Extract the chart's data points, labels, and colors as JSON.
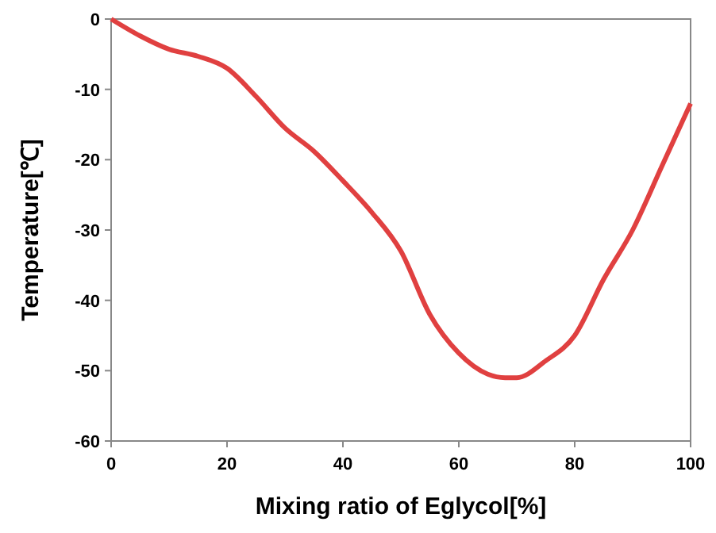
{
  "chart_data": {
    "type": "line",
    "xlabel": "Mixing ratio of Eglycol[%]",
    "ylabel": "Temperature[℃]",
    "xlim": [
      0,
      100
    ],
    "xticks": [
      0,
      20,
      40,
      60,
      80,
      100
    ],
    "ylim": [
      -60,
      0
    ],
    "yticks": [
      -60,
      -50,
      -40,
      -30,
      -20,
      -10,
      0
    ],
    "grid": false,
    "marker": "none",
    "line_style": "solid",
    "series": [
      {
        "color": "#e04040",
        "x": [
          0,
          5,
          10,
          15,
          20,
          25,
          30,
          35,
          40,
          45,
          50,
          55,
          60,
          65,
          68,
          70,
          75,
          80,
          85,
          90,
          95,
          100
        ],
        "values": [
          0,
          -2.4,
          -4.3,
          -5.3,
          -7,
          -11,
          -15.5,
          -18.8,
          -23,
          -27.5,
          -33,
          -42,
          -47.5,
          -50.5,
          -51,
          -51,
          -48.6,
          -45,
          -37,
          -30,
          -21,
          -12
        ]
      }
    ]
  }
}
